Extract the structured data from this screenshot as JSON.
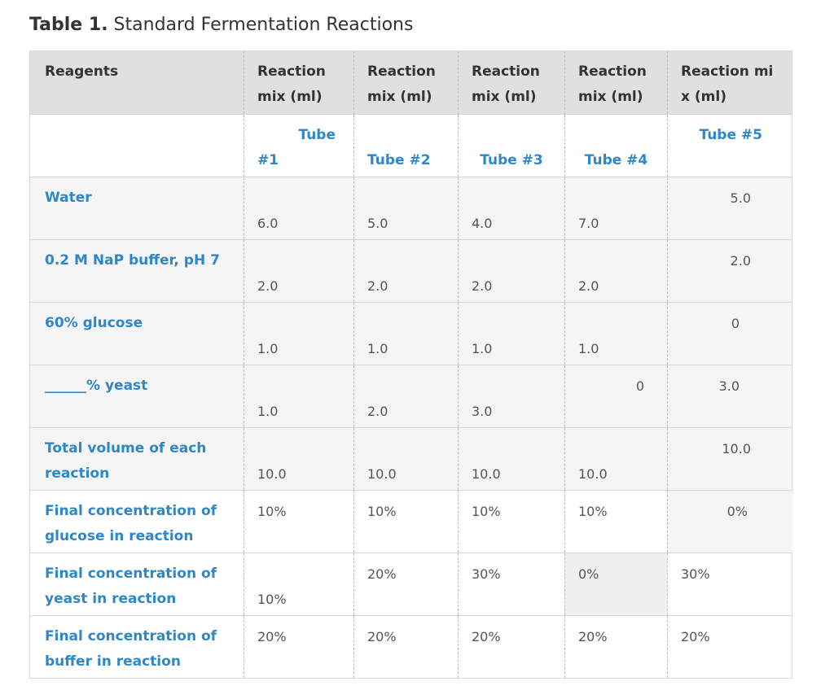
{
  "caption": {
    "bold": "Table 1.",
    "text": " Standard Fermentation Reactions"
  },
  "header": {
    "col0": "Reagents",
    "col1": "Reaction mix (ml)",
    "col2": "Reaction mix (ml)",
    "col3": "Reaction mix (ml)",
    "col4": "Reaction mix (ml)",
    "col5": "Reaction mi x (ml)"
  },
  "tubes": {
    "t1a": "Tube",
    "t1b": "#1",
    "t2": "Tube #2",
    "t3": "Tube #3",
    "t4": "Tube #4",
    "t5": "Tube #5"
  },
  "rows": {
    "water": {
      "label": "Water",
      "v1": "6.0",
      "v2": "5.0",
      "v3": "4.0",
      "v4": "7.0",
      "v5": "5.0"
    },
    "buffer": {
      "label": "0.2 M NaP buffer, pH 7",
      "v1": "2.0",
      "v2": "2.0",
      "v3": "2.0",
      "v4": "2.0",
      "v5": "2.0"
    },
    "glucose": {
      "label": "60% glucose",
      "v1": "1.0",
      "v2": "1.0",
      "v3": "1.0",
      "v4": "1.0",
      "v5": "0"
    },
    "yeast": {
      "label": "______% yeast",
      "v1": "1.0",
      "v2": "2.0",
      "v3": "3.0",
      "v4": "0",
      "v5": "3.0"
    },
    "total": {
      "label": "Total volume of each reaction",
      "v1": "10.0",
      "v2": "10.0",
      "v3": "10.0",
      "v4": "10.0",
      "v5": "10.0"
    },
    "fglucose": {
      "label": "Final concentration of glucose in reaction",
      "v1": "10%",
      "v2": "10%",
      "v3": "10%",
      "v4": "10%",
      "v5": "0%"
    },
    "fyeast": {
      "label": "Final concentration of yeast in reaction",
      "v1": "10%",
      "v2": "20%",
      "v3": "30%",
      "v4": "0%",
      "v5": "30%"
    },
    "fbuffer": {
      "label": "Final concentration of buffer in reaction",
      "v1": "20%",
      "v2": "20%",
      "v3": "20%",
      "v4": "20%",
      "v5": "20%"
    }
  }
}
